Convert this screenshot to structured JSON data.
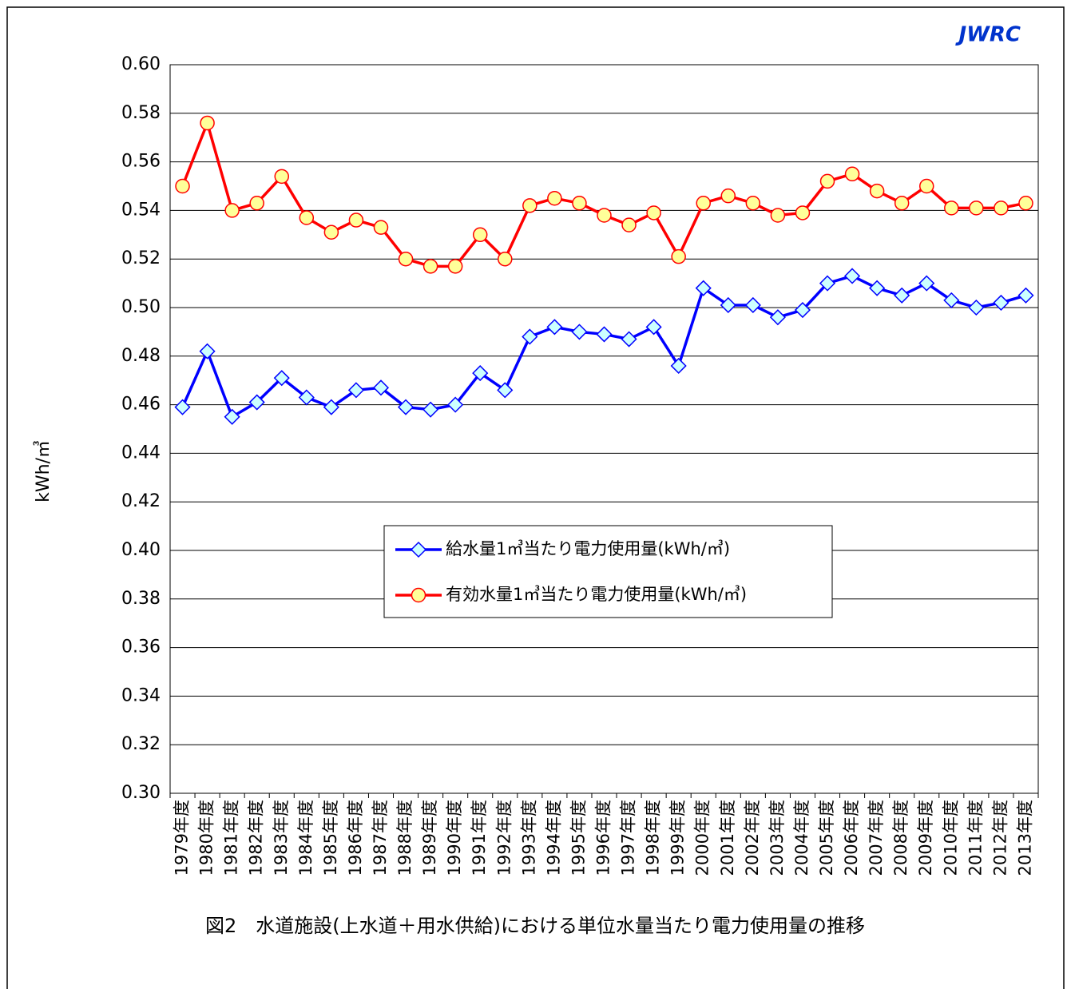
{
  "chart_data": {
    "type": "line",
    "logo": "JWRC",
    "ylabel": "kWh/㎥",
    "caption": "図2　水道施設(上水道＋用水供給)における単位水量当たり電力使用量の推移",
    "categories": [
      "1979年度",
      "1980年度",
      "1981年度",
      "1982年度",
      "1983年度",
      "1984年度",
      "1985年度",
      "1986年度",
      "1987年度",
      "1988年度",
      "1989年度",
      "1990年度",
      "1991年度",
      "1992年度",
      "1993年度",
      "1994年度",
      "1995年度",
      "1996年度",
      "1997年度",
      "1998年度",
      "1999年度",
      "2000年度",
      "2001年度",
      "2002年度",
      "2003年度",
      "2004年度",
      "2005年度",
      "2006年度",
      "2007年度",
      "2008年度",
      "2009年度",
      "2010年度",
      "2011年度",
      "2012年度",
      "2013年度"
    ],
    "series": [
      {
        "name": "給水量1㎥当たり電力使用量(kWh/㎥)",
        "color": "#0000ff",
        "marker": "diamond",
        "marker_fill": "#ccffff",
        "values": [
          0.459,
          0.482,
          0.455,
          0.461,
          0.471,
          0.463,
          0.459,
          0.466,
          0.467,
          0.459,
          0.458,
          0.46,
          0.473,
          0.466,
          0.488,
          0.492,
          0.49,
          0.489,
          0.487,
          0.492,
          0.476,
          0.508,
          0.501,
          0.501,
          0.496,
          0.499,
          0.51,
          0.513,
          0.508,
          0.505,
          0.51,
          0.503,
          0.5,
          0.502,
          0.505
        ]
      },
      {
        "name": "有効水量1㎥当たり電力使用量(kWh/㎥)",
        "color": "#ff0000",
        "marker": "circle",
        "marker_fill": "#ffff99",
        "values": [
          0.55,
          0.576,
          0.54,
          0.543,
          0.554,
          0.537,
          0.531,
          0.536,
          0.533,
          0.52,
          0.517,
          0.517,
          0.53,
          0.52,
          0.542,
          0.545,
          0.543,
          0.538,
          0.534,
          0.539,
          0.521,
          0.543,
          0.546,
          0.543,
          0.538,
          0.539,
          0.552,
          0.555,
          0.548,
          0.543,
          0.55,
          0.541,
          0.541,
          0.541,
          0.543
        ]
      }
    ],
    "ylim": [
      0.3,
      0.6
    ],
    "yticks": [
      {
        "value": 0.3,
        "label": "0.30"
      },
      0.32,
      0.34,
      0.36,
      0.38,
      {
        "value": 0.4,
        "label": "0.40"
      },
      0.42,
      0.44,
      0.46,
      0.48,
      {
        "value": 0.5,
        "label": "0.50"
      },
      0.52,
      0.54,
      0.56,
      0.58,
      {
        "value": 0.6,
        "label": "0.60"
      }
    ],
    "grid": true
  }
}
